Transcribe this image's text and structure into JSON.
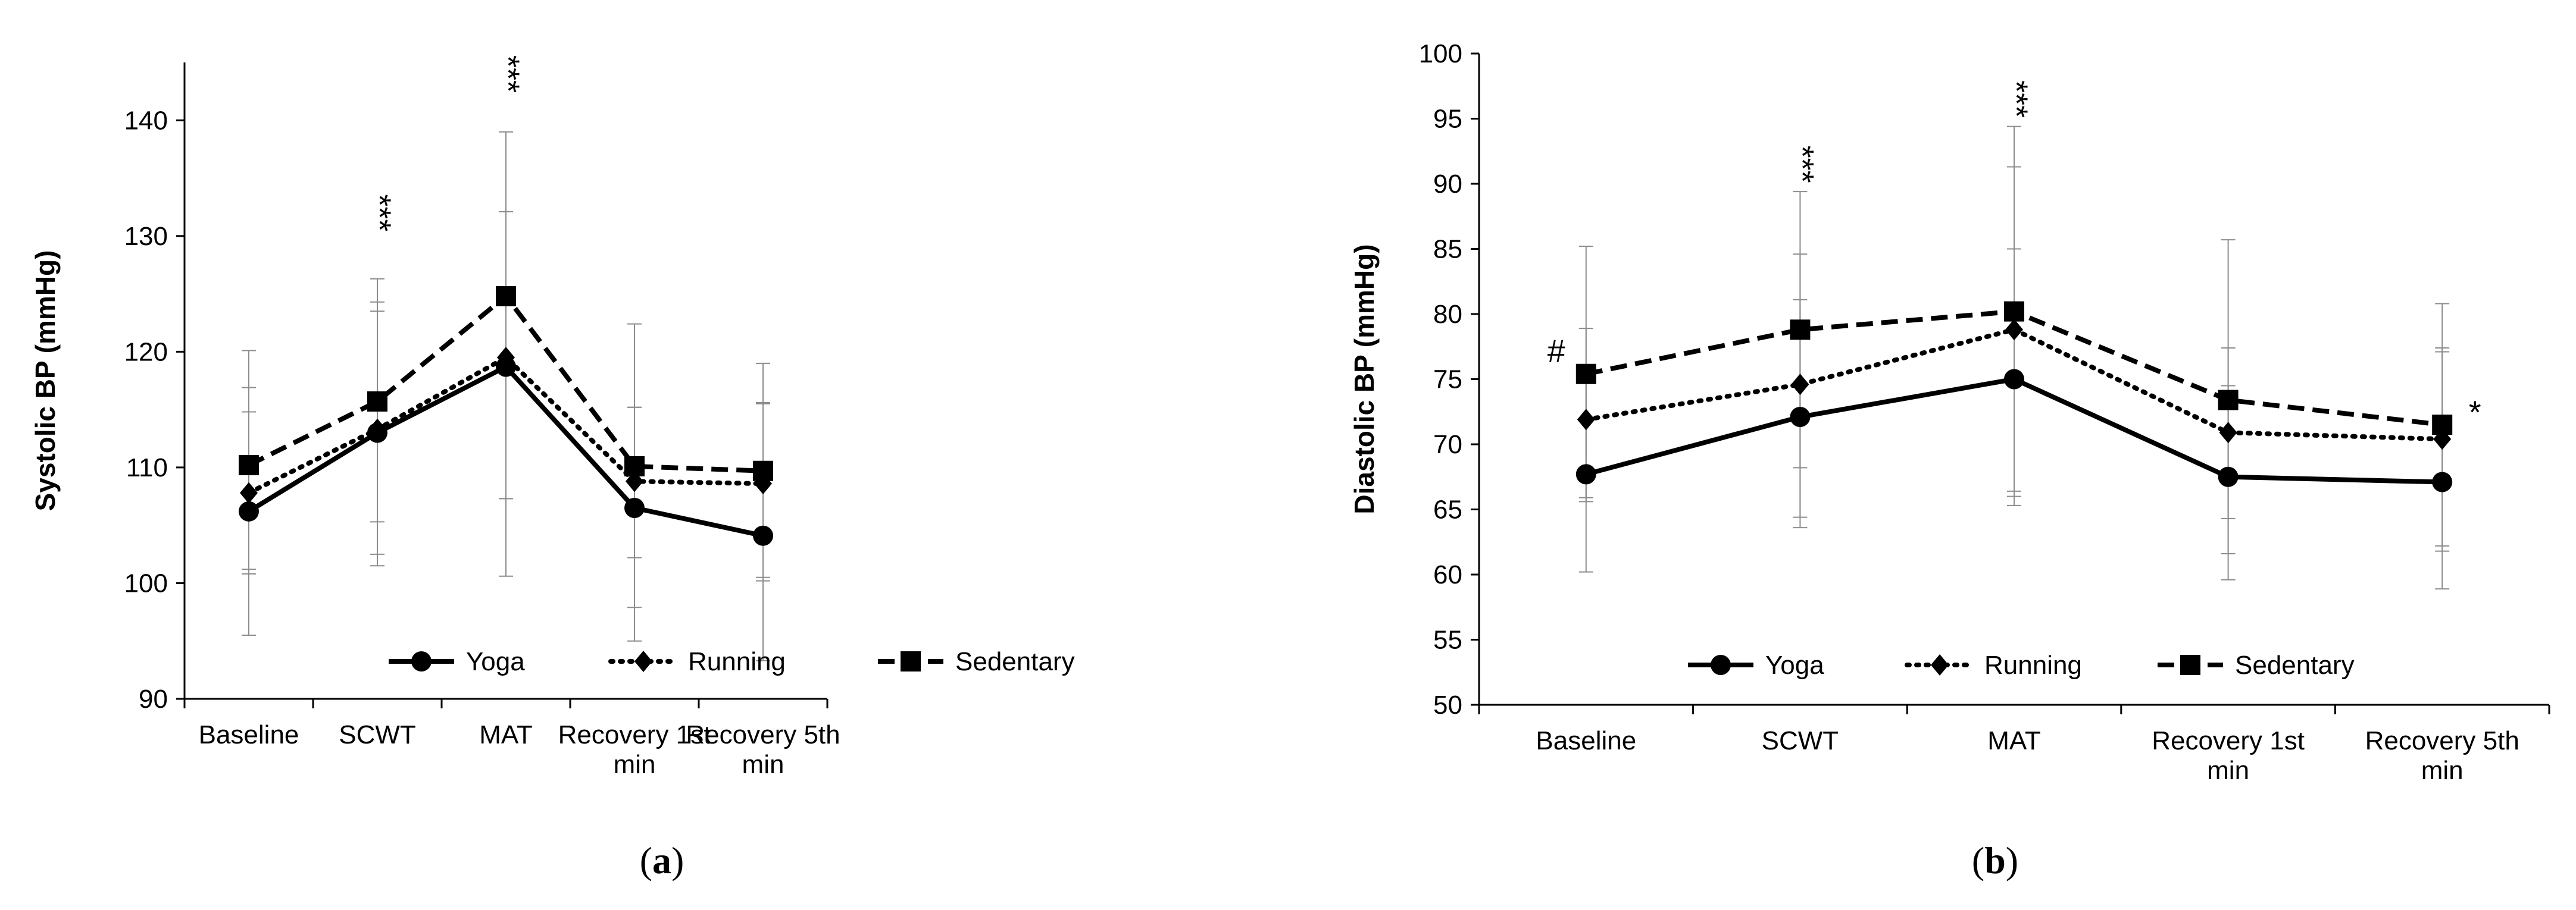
{
  "chart_data": [
    {
      "type": "line",
      "panel_label": "(a)",
      "ylabel": "Systolic BP (mmHg)",
      "xlabel": "",
      "categories": [
        "Baseline",
        "SCWT",
        "MAT",
        "Recovery 1st min",
        "Recovery 5th min"
      ],
      "category_lines": [
        [
          "Baseline"
        ],
        [
          "SCWT"
        ],
        [
          "MAT"
        ],
        [
          "Recovery 1st",
          "min"
        ],
        [
          "Recovery 5th",
          "min"
        ]
      ],
      "ylim": [
        90,
        145
      ],
      "yticks": [
        90,
        100,
        110,
        120,
        130,
        140
      ],
      "grid": false,
      "legend_position": "bottom-center",
      "series": [
        {
          "name": "Yoga",
          "style": "solid",
          "marker": "circle",
          "values": [
            106.2,
            113.0,
            118.7,
            106.5,
            104.1
          ],
          "err_plus": [
            10.7,
            10.5,
            13.4,
            8.7,
            11.5
          ],
          "err_minus": [
            10.7,
            10.5,
            11.4,
            11.5,
            10.8
          ]
        },
        {
          "name": "Running",
          "style": "dotted",
          "marker": "diamond",
          "values": [
            107.8,
            113.3,
            119.5,
            108.8,
            108.6
          ],
          "err_plus": [
            7.0,
            11.0,
            12.6,
            6.4,
            6.9
          ],
          "err_minus": [
            7.0,
            8.0,
            12.2,
            6.6,
            8.4
          ]
        },
        {
          "name": "Sedentary",
          "style": "dashed",
          "marker": "square",
          "values": [
            110.2,
            115.7,
            124.8,
            110.1,
            109.7
          ],
          "err_plus": [
            9.9,
            10.6,
            14.2,
            12.3,
            9.3
          ],
          "err_minus": [
            9.0,
            14.2,
            24.2,
            12.2,
            9.2
          ]
        }
      ],
      "annotations": [
        {
          "category": "SCWT",
          "y": 132,
          "text": "***"
        },
        {
          "category": "MAT",
          "y": 144,
          "text": "***"
        }
      ]
    },
    {
      "type": "line",
      "panel_label": "(b)",
      "ylabel": "Diastolic BP (mmHg)",
      "xlabel": "",
      "categories": [
        "Baseline",
        "SCWT",
        "MAT",
        "Recovery 1st min",
        "Recovery 5th min"
      ],
      "category_lines": [
        [
          "Baseline"
        ],
        [
          "SCWT"
        ],
        [
          "MAT"
        ],
        [
          "Recovery 1st",
          "min"
        ],
        [
          "Recovery 5th",
          "min"
        ]
      ],
      "ylim": [
        50,
        100
      ],
      "yticks": [
        50,
        55,
        60,
        65,
        70,
        75,
        80,
        85,
        90,
        95,
        100
      ],
      "grid": false,
      "legend_position": "bottom-center",
      "series": [
        {
          "name": "Yoga",
          "style": "solid",
          "marker": "circle",
          "values": [
            67.7,
            72.1,
            75.0,
            67.5,
            67.1
          ],
          "err_plus": [
            7.5,
            9.0,
            10.0,
            7.0,
            10.0
          ],
          "err_minus": [
            7.5,
            8.5,
            9.7,
            7.9,
            8.2
          ]
        },
        {
          "name": "Running",
          "style": "dotted",
          "marker": "diamond",
          "values": [
            71.9,
            74.6,
            78.8,
            70.9,
            70.4
          ],
          "err_plus": [
            7.0,
            10.0,
            12.5,
            6.5,
            7.0
          ],
          "err_minus": [
            6.0,
            10.2,
            12.4,
            6.6,
            8.6
          ]
        },
        {
          "name": "Sedentary",
          "style": "dashed",
          "marker": "square",
          "values": [
            75.4,
            78.8,
            80.2,
            73.4,
            71.5
          ],
          "err_plus": [
            9.8,
            10.6,
            14.2,
            12.3,
            9.3
          ],
          "err_minus": [
            9.8,
            10.6,
            14.2,
            11.8,
            9.3
          ]
        }
      ],
      "annotations": [
        {
          "category": "Baseline",
          "y": 77,
          "text": "#",
          "dx": -50
        },
        {
          "category": "SCWT",
          "y": 91.5,
          "text": "***"
        },
        {
          "category": "MAT",
          "y": 96.5,
          "text": "***"
        },
        {
          "category": "Recovery 5th min",
          "y": 72.3,
          "text": "*",
          "dx": 55
        }
      ]
    }
  ]
}
